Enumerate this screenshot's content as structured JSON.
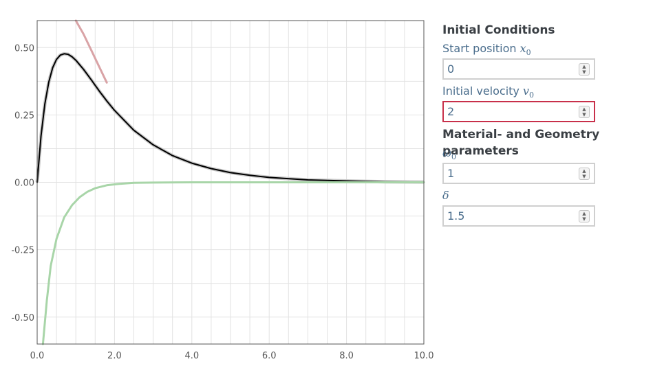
{
  "chart_data": {
    "type": "line",
    "xlim": [
      0,
      10
    ],
    "ylim": [
      -0.6,
      0.6
    ],
    "x_ticks": [
      "0.0",
      "2.0",
      "4.0",
      "6.0",
      "8.0",
      "10.0"
    ],
    "y_ticks": [
      "0.50",
      "0.25",
      "0.00",
      "-0.25",
      "-0.50"
    ],
    "grid": true,
    "series": [
      {
        "color": "#000000",
        "x": [
          0,
          0.1,
          0.2,
          0.3,
          0.4,
          0.5,
          0.6,
          0.7,
          0.8,
          0.9,
          1.0,
          1.2,
          1.4,
          1.6,
          1.8,
          2.0,
          2.5,
          3.0,
          3.5,
          4.0,
          4.5,
          5.0,
          5.5,
          6.0,
          7.0,
          8.0,
          9.0,
          10.0
        ],
        "y": [
          0,
          0.172,
          0.291,
          0.372,
          0.425,
          0.456,
          0.472,
          0.477,
          0.475,
          0.466,
          0.453,
          0.419,
          0.38,
          0.34,
          0.302,
          0.267,
          0.193,
          0.139,
          0.099,
          0.071,
          0.051,
          0.036,
          0.026,
          0.018,
          0.009,
          0.005,
          0.002,
          0.001
        ]
      },
      {
        "color": "#d9a3a6",
        "x": [
          1.0,
          1.2,
          1.4,
          1.6,
          1.8
        ],
        "y": [
          0.6,
          0.55,
          0.49,
          0.43,
          0.37
        ]
      },
      {
        "color": "#a8d5a8",
        "x": [
          0.15,
          0.25,
          0.35,
          0.5,
          0.7,
          0.9,
          1.1,
          1.3,
          1.5,
          1.8,
          2.1,
          2.5,
          3.0,
          4.0,
          6.0,
          8.0,
          10.0
        ],
        "y": [
          -0.6,
          -0.44,
          -0.31,
          -0.21,
          -0.13,
          -0.085,
          -0.055,
          -0.035,
          -0.022,
          -0.011,
          -0.006,
          -0.002,
          -0.001,
          0,
          0,
          0,
          0
        ]
      }
    ]
  },
  "panel": {
    "initial_conditions_title": "Initial Conditions",
    "start_position_label": "Start position",
    "start_position_symbol": "x",
    "start_position_sub": "0",
    "start_position_value": "0",
    "initial_velocity_label": "Initial velocity",
    "initial_velocity_symbol": "v",
    "initial_velocity_sub": "0",
    "initial_velocity_value": "2",
    "material_title": "Material- and Geometry parameters",
    "omega_symbol": "ω",
    "omega_sub": "0",
    "omega_value": "1",
    "delta_symbol": "δ",
    "delta_value": "1.5"
  }
}
